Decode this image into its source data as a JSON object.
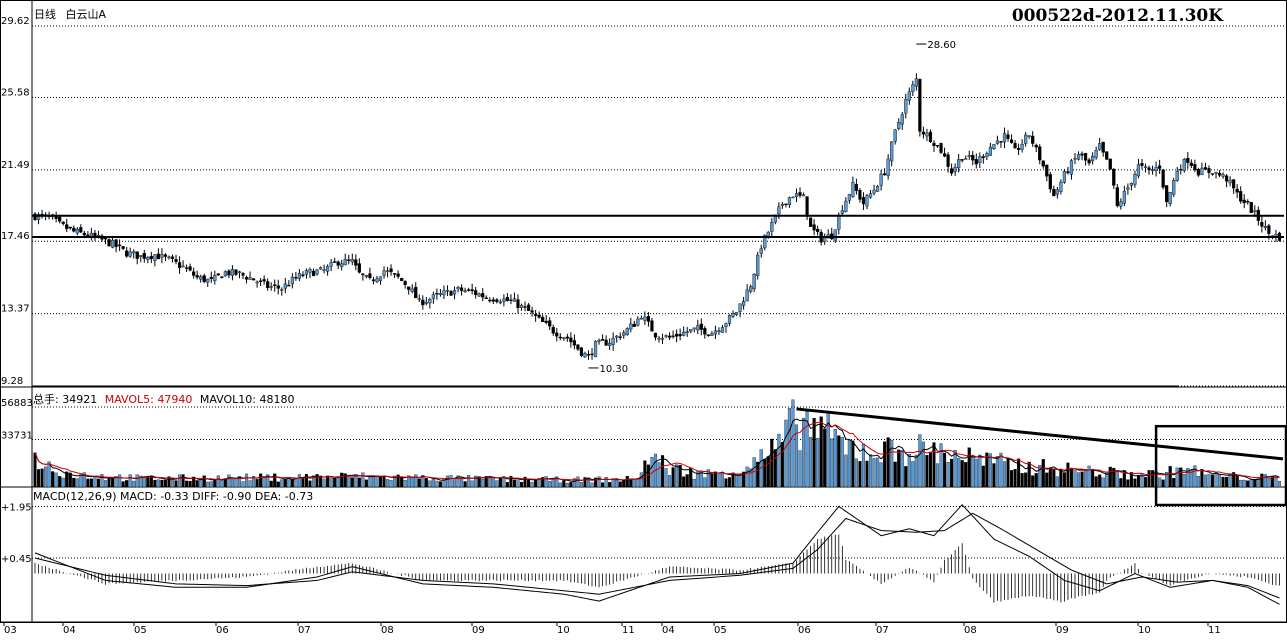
{
  "header": {
    "period_label": "日线",
    "stock_name": "白云山A",
    "code_label": "000522d-2012.11.30K"
  },
  "volume_panel": {
    "label": "总手: 34921",
    "mavol5_label": "MAVOL5: 47940",
    "mavol10_label": "MAVOL10: 48180"
  },
  "macd_panel": {
    "label": "MACD(12,26,9) MACD: -0.33 DIFF: -0.90 DEA: -0.73"
  },
  "colors": {
    "up": "#5b9bd5",
    "down": "#000000",
    "ma5": "#000000",
    "ma10": "#cc0000",
    "grid": "#000000"
  },
  "chart_data": [
    {
      "type": "candlestick",
      "name": "price",
      "y_ticks": [
        "29.62",
        "25.58",
        "21.49",
        "17.46",
        "13.37",
        "9.28"
      ],
      "ylim": [
        9.28,
        29.62
      ],
      "x_tick_labels": [
        "03",
        "04",
        "05",
        "06",
        "07",
        "08",
        "09",
        "10",
        "11",
        "04",
        "05",
        "06",
        "07",
        "08",
        "09",
        "10",
        "11"
      ],
      "annotations": [
        {
          "text": "28.60",
          "value": 28.6
        },
        {
          "text": "10.30",
          "value": 10.3
        }
      ],
      "horizontal_lines": [
        18.9,
        17.7
      ],
      "close_path": [
        [
          0,
          18.9
        ],
        [
          4,
          18.8
        ],
        [
          7,
          18.4
        ],
        [
          11,
          18.0
        ],
        [
          15,
          17.8
        ],
        [
          18,
          17.6
        ],
        [
          22,
          17.3
        ],
        [
          26,
          16.8
        ],
        [
          30,
          16.6
        ],
        [
          34,
          16.7
        ],
        [
          38,
          16.4
        ],
        [
          42,
          16.0
        ],
        [
          46,
          15.4
        ],
        [
          50,
          15.2
        ],
        [
          54,
          15.7
        ],
        [
          58,
          15.6
        ],
        [
          62,
          15.3
        ],
        [
          66,
          14.9
        ],
        [
          70,
          14.8
        ],
        [
          74,
          15.4
        ],
        [
          78,
          15.7
        ],
        [
          82,
          15.8
        ],
        [
          86,
          16.3
        ],
        [
          90,
          16.3
        ],
        [
          92,
          15.6
        ],
        [
          95,
          15.2
        ],
        [
          99,
          15.8
        ],
        [
          103,
          15.4
        ],
        [
          106,
          14.9
        ],
        [
          109,
          14.0
        ],
        [
          112,
          14.2
        ],
        [
          116,
          14.5
        ],
        [
          120,
          14.7
        ],
        [
          124,
          14.6
        ],
        [
          128,
          14.3
        ],
        [
          132,
          14.2
        ],
        [
          136,
          14.0
        ],
        [
          140,
          13.5
        ],
        [
          143,
          13.0
        ],
        [
          147,
          12.4
        ],
        [
          151,
          12.0
        ],
        [
          155,
          11.2
        ],
        [
          157,
          10.9
        ],
        [
          159,
          11.6
        ],
        [
          163,
          11.8
        ],
        [
          167,
          12.3
        ],
        [
          170,
          12.8
        ],
        [
          172,
          13.3
        ],
        [
          176,
          12.2
        ],
        [
          180,
          12.0
        ],
        [
          184,
          12.3
        ],
        [
          188,
          12.5
        ],
        [
          192,
          12.3
        ],
        [
          196,
          12.9
        ],
        [
          199,
          13.5
        ],
        [
          203,
          15.0
        ],
        [
          206,
          17.2
        ],
        [
          209,
          18.4
        ],
        [
          212,
          19.6
        ],
        [
          215,
          20.1
        ],
        [
          218,
          19.9
        ],
        [
          220,
          18.2
        ],
        [
          223,
          17.6
        ],
        [
          226,
          17.8
        ],
        [
          229,
          19.4
        ],
        [
          232,
          20.6
        ],
        [
          235,
          19.6
        ],
        [
          238,
          20.4
        ],
        [
          241,
          21.4
        ],
        [
          244,
          23.6
        ],
        [
          247,
          25.4
        ],
        [
          250,
          26.6
        ],
        [
          251,
          23.8
        ],
        [
          254,
          23.3
        ],
        [
          257,
          22.6
        ],
        [
          260,
          21.4
        ],
        [
          263,
          22.3
        ],
        [
          267,
          21.9
        ],
        [
          271,
          22.8
        ],
        [
          275,
          23.4
        ],
        [
          278,
          22.5
        ],
        [
          282,
          23.5
        ],
        [
          286,
          21.7
        ],
        [
          289,
          20.0
        ],
        [
          292,
          21.2
        ],
        [
          296,
          22.4
        ],
        [
          299,
          21.8
        ],
        [
          302,
          22.8
        ],
        [
          305,
          21.5
        ],
        [
          307,
          19.4
        ],
        [
          310,
          20.5
        ],
        [
          313,
          21.7
        ],
        [
          316,
          21.4
        ],
        [
          319,
          21.7
        ],
        [
          321,
          19.6
        ],
        [
          324,
          21.5
        ],
        [
          327,
          22.1
        ],
        [
          330,
          21.4
        ],
        [
          334,
          21.4
        ],
        [
          338,
          21.0
        ],
        [
          341,
          20.1
        ],
        [
          344,
          19.5
        ],
        [
          347,
          18.7
        ],
        [
          350,
          17.9
        ],
        [
          353,
          17.7
        ]
      ],
      "candle_count": 354
    },
    {
      "type": "bar",
      "name": "volume",
      "y_ticks": [
        "56883",
        "33731"
      ],
      "ylim": [
        0,
        56883
      ],
      "trend_line": [
        [
          216,
          55500
        ],
        [
          354,
          20000
        ]
      ],
      "vol_path": [
        [
          0,
          19000
        ],
        [
          10,
          9000
        ],
        [
          30,
          6000
        ],
        [
          60,
          6500
        ],
        [
          90,
          7500
        ],
        [
          120,
          6000
        ],
        [
          150,
          5000
        ],
        [
          170,
          5500
        ],
        [
          175,
          22000
        ],
        [
          180,
          13000
        ],
        [
          190,
          9000
        ],
        [
          200,
          12000
        ],
        [
          210,
          26000
        ],
        [
          216,
          47000
        ],
        [
          222,
          42000
        ],
        [
          230,
          28000
        ],
        [
          240,
          25000
        ],
        [
          250,
          27000
        ],
        [
          260,
          24000
        ],
        [
          270,
          18000
        ],
        [
          280,
          15000
        ],
        [
          290,
          13000
        ],
        [
          300,
          11000
        ],
        [
          310,
          9000
        ],
        [
          320,
          9000
        ],
        [
          326,
          13000
        ],
        [
          334,
          8000
        ],
        [
          354,
          6000
        ]
      ]
    },
    {
      "type": "line",
      "name": "macd",
      "y_ticks": [
        "+1.95",
        "+0.45"
      ],
      "ylim": [
        -1.35,
        2.05
      ],
      "series": [
        {
          "name": "DIFF",
          "path": [
            [
              0,
              0.6
            ],
            [
              20,
              -0.2
            ],
            [
              40,
              -0.4
            ],
            [
              60,
              -0.4
            ],
            [
              80,
              -0.1
            ],
            [
              90,
              0.2
            ],
            [
              110,
              -0.3
            ],
            [
              130,
              -0.4
            ],
            [
              150,
              -0.6
            ],
            [
              160,
              -0.8
            ],
            [
              180,
              -0.1
            ],
            [
              200,
              0.0
            ],
            [
              215,
              0.3
            ],
            [
              222,
              1.2
            ],
            [
              228,
              1.95
            ],
            [
              240,
              1.1
            ],
            [
              248,
              1.3
            ],
            [
              255,
              1.1
            ],
            [
              263,
              2.0
            ],
            [
              272,
              1.0
            ],
            [
              282,
              0.5
            ],
            [
              292,
              -0.2
            ],
            [
              302,
              -0.5
            ],
            [
              312,
              0.0
            ],
            [
              322,
              -0.4
            ],
            [
              334,
              -0.2
            ],
            [
              344,
              -0.4
            ],
            [
              354,
              -0.95
            ]
          ]
        },
        {
          "name": "DEA",
          "path": [
            [
              0,
              0.45
            ],
            [
              20,
              -0.05
            ],
            [
              40,
              -0.3
            ],
            [
              60,
              -0.35
            ],
            [
              80,
              -0.2
            ],
            [
              90,
              0.05
            ],
            [
              110,
              -0.2
            ],
            [
              130,
              -0.3
            ],
            [
              150,
              -0.5
            ],
            [
              160,
              -0.6
            ],
            [
              180,
              -0.2
            ],
            [
              200,
              -0.05
            ],
            [
              215,
              0.15
            ],
            [
              222,
              0.7
            ],
            [
              230,
              1.6
            ],
            [
              240,
              1.25
            ],
            [
              250,
              1.2
            ],
            [
              258,
              1.25
            ],
            [
              266,
              1.75
            ],
            [
              274,
              1.3
            ],
            [
              284,
              0.7
            ],
            [
              294,
              0.1
            ],
            [
              304,
              -0.3
            ],
            [
              314,
              -0.1
            ],
            [
              324,
              -0.25
            ],
            [
              334,
              -0.2
            ],
            [
              344,
              -0.35
            ],
            [
              354,
              -0.75
            ]
          ]
        }
      ]
    }
  ]
}
